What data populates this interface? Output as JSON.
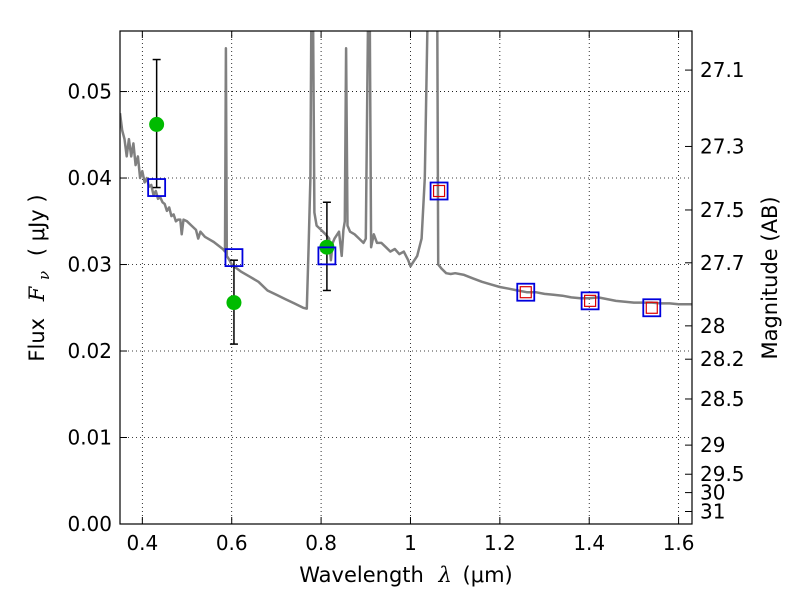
{
  "chart_data": {
    "type": "scatter",
    "xlabel_text": "Wavelength",
    "xlabel_symbol": "λ",
    "xlabel_unit": "(μm)",
    "ylabel_text": "Flux",
    "ylabel_symbol": "F",
    "ylabel_sub": "ν",
    "ylabel_unit": "( μJy )",
    "y2label": "Magnitude (AB)",
    "xlim": [
      0.35,
      1.63
    ],
    "ylim": [
      0.0,
      0.057
    ],
    "grid": true,
    "xticks": [
      0.4,
      0.6,
      0.8,
      1.0,
      1.2,
      1.4,
      1.6
    ],
    "xtick_labels": [
      "0.4",
      "0.6",
      "0.8",
      "1",
      "1.2",
      "1.4",
      "1.6"
    ],
    "yticks": [
      0.0,
      0.01,
      0.02,
      0.03,
      0.04,
      0.05
    ],
    "ytick_labels": [
      "0.00",
      "0.01",
      "0.02",
      "0.03",
      "0.04",
      "0.05"
    ],
    "magnitude_ticks": [
      "27.1",
      "27.3",
      "27.5",
      "27.7",
      "28",
      "28.2",
      "28.5",
      "29",
      "29.5",
      "30",
      "31"
    ],
    "magnitude_values": [
      27.1,
      27.3,
      27.5,
      27.7,
      28.0,
      28.2,
      28.5,
      29.0,
      29.5,
      30.0,
      31.0
    ],
    "colors": {
      "model": "#808080",
      "observed": "#00bb00",
      "model_phot": "#0000dd",
      "upper": "#dd0000",
      "errorbar": "#000000"
    },
    "series": [
      {
        "kind": "model_sed",
        "points": [
          [
            0.35,
            0.0475
          ],
          [
            0.355,
            0.0455
          ],
          [
            0.36,
            0.0445
          ],
          [
            0.365,
            0.0425
          ],
          [
            0.37,
            0.0445
          ],
          [
            0.375,
            0.0425
          ],
          [
            0.38,
            0.044
          ],
          [
            0.385,
            0.0415
          ],
          [
            0.39,
            0.0425
          ],
          [
            0.395,
            0.04
          ],
          [
            0.4,
            0.0408
          ],
          [
            0.405,
            0.0395
          ],
          [
            0.41,
            0.04
          ],
          [
            0.415,
            0.039
          ],
          [
            0.42,
            0.0392
          ],
          [
            0.425,
            0.038
          ],
          [
            0.43,
            0.0385
          ],
          [
            0.435,
            0.0376
          ],
          [
            0.44,
            0.0378
          ],
          [
            0.445,
            0.0372
          ],
          [
            0.45,
            0.037
          ],
          [
            0.455,
            0.0362
          ],
          [
            0.46,
            0.0366
          ],
          [
            0.465,
            0.0356
          ],
          [
            0.47,
            0.0358
          ],
          [
            0.475,
            0.035
          ],
          [
            0.48,
            0.0352
          ],
          [
            0.485,
            0.0352
          ],
          [
            0.488,
            0.0335
          ],
          [
            0.492,
            0.0352
          ],
          [
            0.5,
            0.035
          ],
          [
            0.51,
            0.0345
          ],
          [
            0.52,
            0.034
          ],
          [
            0.525,
            0.033
          ],
          [
            0.53,
            0.0338
          ],
          [
            0.54,
            0.0332
          ],
          [
            0.55,
            0.0329
          ],
          [
            0.56,
            0.0326
          ],
          [
            0.57,
            0.0322
          ],
          [
            0.58,
            0.0318
          ],
          [
            0.585,
            0.0315
          ],
          [
            0.587,
            0.055
          ],
          [
            0.589,
            0.031
          ],
          [
            0.595,
            0.0305
          ],
          [
            0.6,
            0.03
          ],
          [
            0.61,
            0.0296
          ],
          [
            0.62,
            0.0292
          ],
          [
            0.64,
            0.0286
          ],
          [
            0.66,
            0.028
          ],
          [
            0.68,
            0.027
          ],
          [
            0.7,
            0.0265
          ],
          [
            0.72,
            0.026
          ],
          [
            0.74,
            0.0255
          ],
          [
            0.76,
            0.025
          ],
          [
            0.768,
            0.0249
          ],
          [
            0.772,
            0.032
          ],
          [
            0.776,
            0.04
          ],
          [
            0.778,
            0.058
          ],
          [
            0.782,
            0.058
          ],
          [
            0.785,
            0.036
          ],
          [
            0.79,
            0.0345
          ],
          [
            0.8,
            0.034
          ],
          [
            0.81,
            0.0335
          ],
          [
            0.818,
            0.033
          ],
          [
            0.822,
            0.0305
          ],
          [
            0.826,
            0.0325
          ],
          [
            0.83,
            0.033
          ],
          [
            0.84,
            0.0338
          ],
          [
            0.846,
            0.031
          ],
          [
            0.85,
            0.034
          ],
          [
            0.853,
            0.035
          ],
          [
            0.856,
            0.055
          ],
          [
            0.859,
            0.0345
          ],
          [
            0.865,
            0.0338
          ],
          [
            0.875,
            0.0335
          ],
          [
            0.885,
            0.033
          ],
          [
            0.895,
            0.0325
          ],
          [
            0.9,
            0.033
          ],
          [
            0.905,
            0.058
          ],
          [
            0.909,
            0.058
          ],
          [
            0.912,
            0.032
          ],
          [
            0.918,
            0.0335
          ],
          [
            0.925,
            0.0325
          ],
          [
            0.935,
            0.0325
          ],
          [
            0.945,
            0.032
          ],
          [
            0.955,
            0.0315
          ],
          [
            0.965,
            0.0318
          ],
          [
            0.975,
            0.0312
          ],
          [
            0.985,
            0.0315
          ],
          [
            0.995,
            0.0305
          ],
          [
            1.0,
            0.0298
          ],
          [
            1.005,
            0.0302
          ],
          [
            1.015,
            0.031
          ],
          [
            1.025,
            0.033
          ],
          [
            1.032,
            0.04
          ],
          [
            1.038,
            0.058
          ],
          [
            1.06,
            0.058
          ],
          [
            1.062,
            0.03
          ],
          [
            1.07,
            0.0295
          ],
          [
            1.08,
            0.029
          ],
          [
            1.09,
            0.0289
          ],
          [
            1.1,
            0.029
          ],
          [
            1.12,
            0.0288
          ],
          [
            1.14,
            0.0284
          ],
          [
            1.16,
            0.028
          ],
          [
            1.18,
            0.0277
          ],
          [
            1.2,
            0.0274
          ],
          [
            1.22,
            0.0272
          ],
          [
            1.24,
            0.027
          ],
          [
            1.26,
            0.0268
          ],
          [
            1.28,
            0.0268
          ],
          [
            1.3,
            0.0266
          ],
          [
            1.32,
            0.0265
          ],
          [
            1.34,
            0.0264
          ],
          [
            1.36,
            0.0262
          ],
          [
            1.38,
            0.0261
          ],
          [
            1.4,
            0.0261
          ],
          [
            1.42,
            0.0262
          ],
          [
            1.44,
            0.026
          ],
          [
            1.46,
            0.0258
          ],
          [
            1.48,
            0.0257
          ],
          [
            1.5,
            0.0256
          ],
          [
            1.52,
            0.0256
          ],
          [
            1.54,
            0.0256
          ],
          [
            1.56,
            0.0255
          ],
          [
            1.58,
            0.0255
          ],
          [
            1.6,
            0.0254
          ],
          [
            1.63,
            0.0254
          ]
        ]
      },
      {
        "kind": "observed",
        "points": [
          {
            "x": 0.432,
            "y": 0.0462,
            "yerr_low": 0.0389,
            "yerr_high": 0.0537
          },
          {
            "x": 0.605,
            "y": 0.0256,
            "yerr_low": 0.0208,
            "yerr_high": 0.0305
          },
          {
            "x": 0.813,
            "y": 0.032,
            "yerr_low": 0.027,
            "yerr_high": 0.0372
          }
        ]
      },
      {
        "kind": "model_photometry",
        "points": [
          {
            "x": 0.432,
            "y": 0.0389
          },
          {
            "x": 0.605,
            "y": 0.0308
          },
          {
            "x": 0.813,
            "y": 0.031
          },
          {
            "x": 1.064,
            "y": 0.0385
          },
          {
            "x": 1.258,
            "y": 0.0268
          },
          {
            "x": 1.402,
            "y": 0.0258
          },
          {
            "x": 1.54,
            "y": 0.025
          }
        ]
      },
      {
        "kind": "upper_limit",
        "points": [
          {
            "x": 1.064,
            "y": 0.0385
          },
          {
            "x": 1.258,
            "y": 0.0268
          },
          {
            "x": 1.402,
            "y": 0.0258
          },
          {
            "x": 1.54,
            "y": 0.025
          }
        ]
      }
    ]
  }
}
